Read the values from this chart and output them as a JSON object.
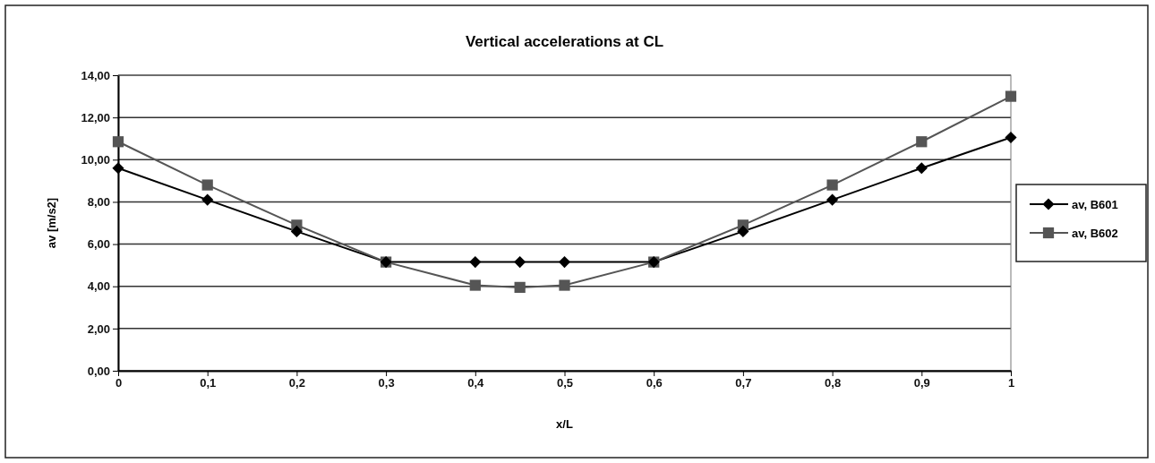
{
  "chart_data": {
    "type": "line",
    "title": "Vertical accelerations at CL",
    "xlabel": "x/L",
    "ylabel": "av [m/s2]",
    "xlim": [
      0,
      1
    ],
    "xticks": [
      0,
      {
        "value": 0.1,
        "label": "0,1"
      },
      {
        "value": 0.2,
        "label": "0,2"
      },
      {
        "value": 0.3,
        "label": "0,3"
      },
      {
        "value": 0.4,
        "label": "0,4"
      },
      {
        "value": 0.5,
        "label": "0,5"
      },
      {
        "value": 0.6,
        "label": "0,6"
      },
      {
        "value": 0.7,
        "label": "0,7"
      },
      {
        "value": 0.8,
        "label": "0,8"
      },
      {
        "value": 0.9,
        "label": "0,9"
      },
      1
    ],
    "ylim": [
      0,
      14
    ],
    "yticks": [
      {
        "value": 0,
        "label": "0,00"
      },
      {
        "value": 2,
        "label": "2,00"
      },
      {
        "value": 4,
        "label": "4,00"
      },
      {
        "value": 6,
        "label": "6,00"
      },
      {
        "value": 8,
        "label": "8,00"
      },
      {
        "value": 10,
        "label": "10,00"
      },
      {
        "value": 12,
        "label": "12,00"
      },
      {
        "value": 14,
        "label": "14,00"
      }
    ],
    "x": [
      0,
      0.1,
      0.2,
      0.3,
      0.4,
      0.45,
      0.5,
      0.6,
      0.7,
      0.8,
      0.9,
      1
    ],
    "series": [
      {
        "name": "av, B601",
        "color": "#000000",
        "marker": "diamond",
        "values": [
          9.6,
          8.1,
          6.6,
          5.15,
          5.15,
          5.15,
          5.15,
          5.15,
          6.6,
          8.1,
          9.6,
          11.05
        ]
      },
      {
        "name": "av, B602",
        "color": "#555555",
        "marker": "square",
        "values": [
          10.85,
          8.8,
          6.9,
          5.15,
          4.05,
          3.95,
          4.05,
          5.15,
          6.9,
          8.8,
          10.85,
          13.0
        ]
      }
    ],
    "grid": "y",
    "legend": "right",
    "line_style": "solid"
  }
}
